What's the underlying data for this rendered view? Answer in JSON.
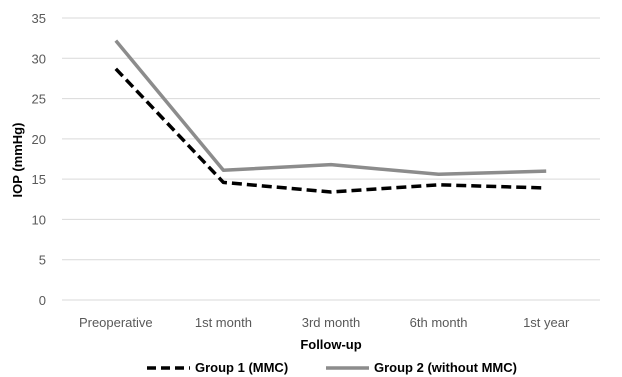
{
  "chart_data": {
    "type": "line",
    "categories": [
      "Preoperative",
      "1st month",
      "3rd month",
      "6th month",
      "1st year"
    ],
    "series": [
      {
        "name": "Group 1 (MMC)",
        "values": [
          28.7,
          14.6,
          13.4,
          14.3,
          13.9
        ],
        "color": "#000000",
        "dash": "dashed"
      },
      {
        "name": "Group 2 (without MMC)",
        "values": [
          32.2,
          16.1,
          16.8,
          15.6,
          16.0
        ],
        "color": "#8c8c8c",
        "dash": "solid"
      }
    ],
    "title": "",
    "xlabel": "Follow-up",
    "ylabel": "IOP (mmHg)",
    "ylim": [
      0,
      35
    ],
    "yticks": [
      "0",
      "5",
      "10",
      "15",
      "20",
      "25",
      "30",
      "35"
    ],
    "grid": true,
    "legend_position": "bottom"
  }
}
